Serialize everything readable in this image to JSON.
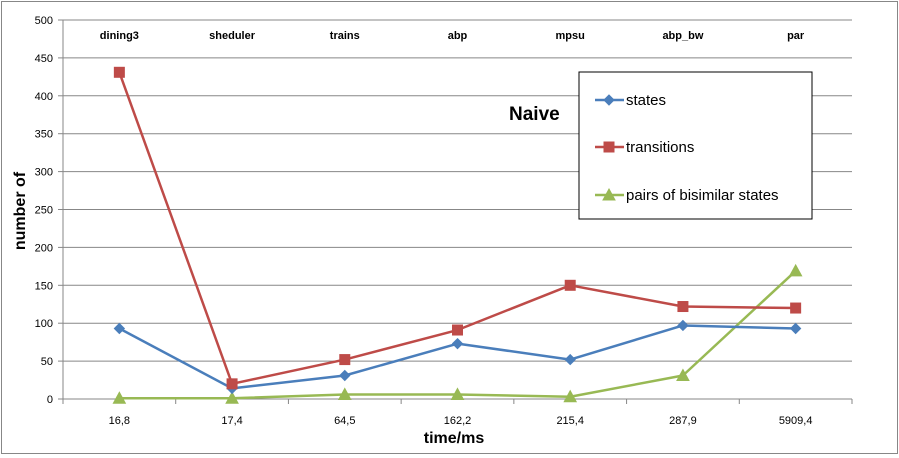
{
  "chart_data": {
    "type": "line",
    "annotation": "Naive",
    "xlabel": "time/ms",
    "ylabel": "number of",
    "ylim": [
      0,
      500
    ],
    "ytick_step": 50,
    "yticks": [
      "0",
      "50",
      "100",
      "150",
      "200",
      "250",
      "300",
      "350",
      "400",
      "450",
      "500"
    ],
    "grid": true,
    "legend_position": "top-right",
    "categories": [
      "16,8",
      "17,4",
      "64,5",
      "162,2",
      "215,4",
      "287,9",
      "5909,4"
    ],
    "top_labels": [
      "dining3",
      "sheduler",
      "trains",
      "abp",
      "mpsu",
      "abp_bw",
      "par"
    ],
    "series": [
      {
        "name": "states",
        "color": "#4A7EBB",
        "marker": "diamond",
        "values": [
          93,
          14,
          31,
          73,
          52,
          97,
          93
        ]
      },
      {
        "name": "transitions",
        "color": "#BE4B48",
        "marker": "square",
        "values": [
          431,
          20,
          52,
          91,
          150,
          122,
          120
        ]
      },
      {
        "name": "pairs of bisimilar states",
        "color": "#98B954",
        "marker": "triangle",
        "values": [
          1,
          1,
          6,
          6,
          3,
          31,
          169
        ]
      }
    ]
  }
}
